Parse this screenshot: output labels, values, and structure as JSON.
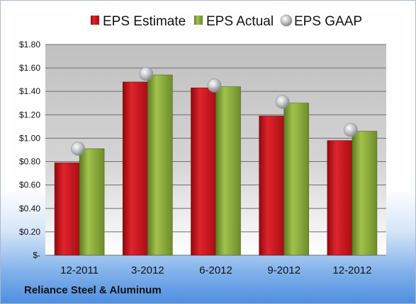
{
  "footer_text": "Reliance Steel & Aluminum",
  "colors": {
    "estimate": "#c8141c",
    "actual": "#8cad3a",
    "gaap": "#b8bcc2"
  },
  "chart_data": {
    "type": "bar",
    "title": "",
    "xlabel": "",
    "ylabel": "",
    "categories": [
      "12-2011",
      "3-2012",
      "6-2012",
      "9-2012",
      "12-2012"
    ],
    "series": [
      {
        "name": "EPS Estimate",
        "type": "bar",
        "values": [
          0.79,
          1.48,
          1.43,
          1.19,
          0.98
        ]
      },
      {
        "name": "EPS Actual",
        "type": "bar",
        "values": [
          0.91,
          1.54,
          1.44,
          1.3,
          1.06
        ]
      },
      {
        "name": "EPS GAAP",
        "type": "scatter",
        "values": [
          0.91,
          1.55,
          1.45,
          1.31,
          1.07
        ]
      }
    ],
    "ylim": [
      0,
      1.8
    ],
    "yticks": [
      "$-",
      "$0.20",
      "$0.40",
      "$0.60",
      "$0.80",
      "$1.00",
      "$1.20",
      "$1.40",
      "$1.60",
      "$1.80"
    ],
    "grid": true,
    "legend_position": "top"
  }
}
